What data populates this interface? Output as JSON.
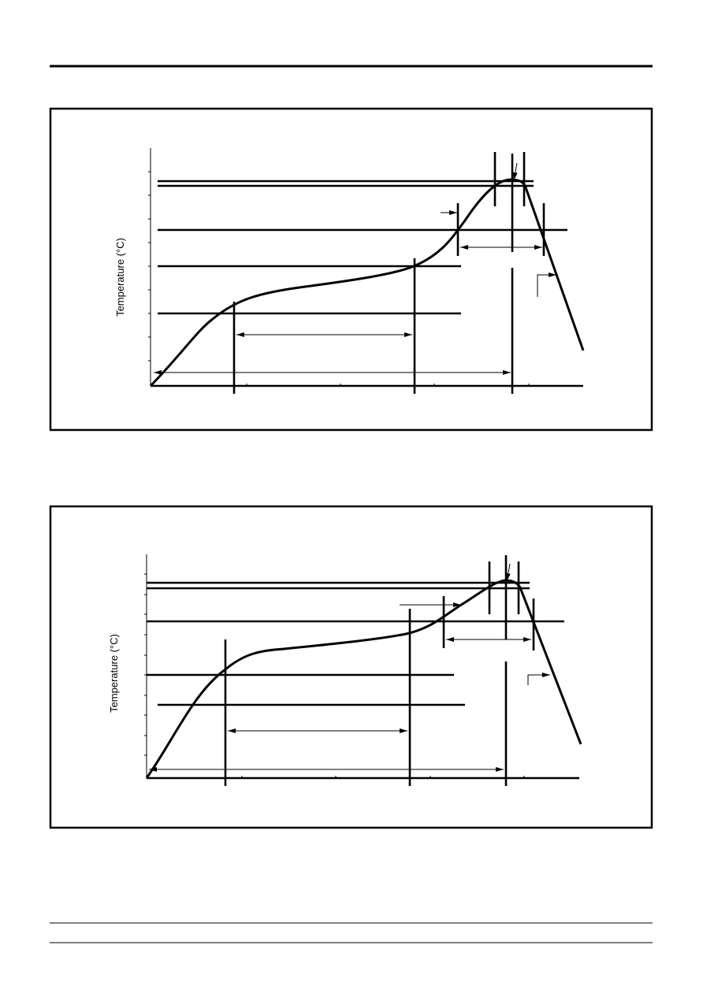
{
  "figures": [
    {
      "y_axis_label": "Temperature (°C)"
    },
    {
      "y_axis_label": "Temperature (°C)"
    }
  ]
}
